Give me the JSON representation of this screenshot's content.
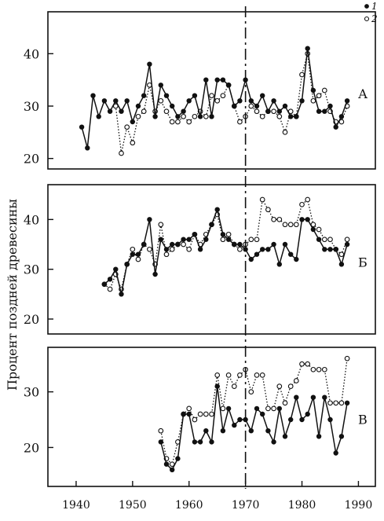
{
  "chart_data": {
    "type": "line",
    "ylabel": "Процент поздней древесины",
    "x_ticks": [
      1940,
      1950,
      1960,
      1970,
      1980,
      1990
    ],
    "xlim": [
      1935,
      1993
    ],
    "vertical_line_x": 1970,
    "legend": {
      "position": "top-right",
      "entries": [
        {
          "label": "1",
          "marker": "filled-circle"
        },
        {
          "label": "2",
          "marker": "open-circle"
        }
      ]
    },
    "panels": [
      {
        "label": "А",
        "ylim": [
          18,
          48
        ],
        "y_ticks": [
          20,
          30,
          40
        ],
        "series": [
          {
            "legend_label": "1",
            "x": [
              1941,
              1942,
              1943,
              1944,
              1945,
              1946,
              1947,
              1948,
              1949,
              1950,
              1951,
              1952,
              1953,
              1954,
              1955,
              1956,
              1957,
              1958,
              1959,
              1960,
              1961,
              1962,
              1963,
              1964,
              1965,
              1966,
              1967,
              1968,
              1969,
              1970,
              1971,
              1972,
              1973,
              1974,
              1975,
              1976,
              1977,
              1978,
              1979,
              1980,
              1981,
              1982,
              1983,
              1984,
              1985,
              1986,
              1987,
              1988
            ],
            "y": [
              26,
              22,
              32,
              28,
              31,
              29,
              31,
              29,
              31,
              27,
              30,
              32,
              38,
              28,
              34,
              32,
              30,
              28,
              29,
              31,
              32,
              28,
              35,
              28,
              35,
              35,
              34,
              30,
              31,
              35,
              31,
              30,
              32,
              29,
              31,
              29,
              30,
              28,
              28,
              31,
              41,
              33,
              29,
              29,
              30,
              26,
              28,
              31
            ]
          },
          {
            "legend_label": "2",
            "x": [
              1947,
              1948,
              1949,
              1950,
              1951,
              1952,
              1953,
              1954,
              1955,
              1956,
              1957,
              1958,
              1959,
              1960,
              1961,
              1962,
              1963,
              1964,
              1965,
              1966,
              1967,
              1968,
              1969,
              1970,
              1971,
              1972,
              1973,
              1974,
              1975,
              1976,
              1977,
              1978,
              1979,
              1980,
              1981,
              1982,
              1983,
              1984,
              1985,
              1986,
              1987,
              1988
            ],
            "y": [
              30,
              21,
              26,
              23,
              28,
              29,
              34,
              29,
              31,
              29,
              27,
              27,
              28,
              27,
              28,
              29,
              28,
              32,
              31,
              32,
              34,
              30,
              27,
              28,
              30,
              29,
              28,
              29,
              29,
              28,
              25,
              29,
              28,
              36,
              40,
              31,
              32,
              33,
              29,
              27,
              27,
              30
            ]
          }
        ]
      },
      {
        "label": "Б",
        "ylim": [
          17,
          47
        ],
        "y_ticks": [
          20,
          30,
          40
        ],
        "series": [
          {
            "legend_label": "1",
            "x": [
              1945,
              1946,
              1947,
              1948,
              1949,
              1950,
              1951,
              1952,
              1953,
              1954,
              1955,
              1956,
              1957,
              1958,
              1959,
              1960,
              1961,
              1962,
              1963,
              1964,
              1965,
              1966,
              1967,
              1968,
              1969,
              1970,
              1971,
              1972,
              1973,
              1974,
              1975,
              1976,
              1977,
              1978,
              1979,
              1980,
              1981,
              1982,
              1983,
              1984,
              1985,
              1986,
              1987,
              1988
            ],
            "y": [
              27,
              28,
              30,
              25,
              31,
              33,
              33,
              35,
              40,
              29,
              36,
              34,
              35,
              35,
              36,
              36,
              37,
              34,
              36,
              39,
              42,
              37,
              36,
              35,
              35,
              34,
              32,
              33,
              34,
              34,
              35,
              31,
              35,
              33,
              32,
              40,
              40,
              38,
              36,
              34,
              34,
              34,
              31,
              35
            ]
          },
          {
            "legend_label": "2",
            "x": [
              1945,
              1946,
              1947,
              1948,
              1949,
              1950,
              1951,
              1952,
              1953,
              1954,
              1955,
              1956,
              1957,
              1958,
              1959,
              1960,
              1961,
              1962,
              1963,
              1964,
              1965,
              1966,
              1967,
              1968,
              1969,
              1970,
              1971,
              1972,
              1973,
              1974,
              1975,
              1976,
              1977,
              1978,
              1979,
              1980,
              1981,
              1982,
              1983,
              1984,
              1985,
              1986,
              1987,
              1988
            ],
            "y": [
              27,
              26,
              29,
              26,
              31,
              34,
              32,
              35,
              34,
              31,
              39,
              33,
              34,
              35,
              35,
              34,
              37,
              35,
              37,
              39,
              41,
              36,
              37,
              35,
              34,
              35,
              36,
              36,
              44,
              42,
              40,
              40,
              39,
              39,
              39,
              43,
              44,
              39,
              38,
              36,
              36,
              34,
              33,
              36
            ]
          }
        ]
      },
      {
        "label": "В",
        "ylim": [
          13,
          38
        ],
        "y_ticks": [
          20,
          30
        ],
        "series": [
          {
            "legend_label": "1",
            "x": [
              1955,
              1956,
              1957,
              1958,
              1959,
              1960,
              1961,
              1962,
              1963,
              1964,
              1965,
              1966,
              1967,
              1968,
              1969,
              1970,
              1971,
              1972,
              1973,
              1974,
              1975,
              1976,
              1977,
              1978,
              1979,
              1980,
              1981,
              1982,
              1983,
              1984,
              1985,
              1986,
              1987,
              1988
            ],
            "y": [
              21,
              17,
              16,
              18,
              26,
              26,
              21,
              21,
              23,
              21,
              31,
              23,
              27,
              24,
              25,
              25,
              23,
              27,
              26,
              23,
              21,
              27,
              22,
              25,
              29,
              25,
              26,
              29,
              22,
              29,
              25,
              19,
              22,
              28
            ]
          },
          {
            "legend_label": "2",
            "x": [
              1955,
              1956,
              1957,
              1958,
              1959,
              1960,
              1961,
              1962,
              1963,
              1964,
              1965,
              1966,
              1967,
              1968,
              1969,
              1970,
              1971,
              1972,
              1973,
              1974,
              1975,
              1976,
              1977,
              1978,
              1979,
              1980,
              1981,
              1982,
              1983,
              1984,
              1985,
              1986,
              1987,
              1988
            ],
            "y": [
              23,
              18,
              17,
              21,
              26,
              27,
              25,
              26,
              26,
              26,
              33,
              27,
              33,
              31,
              33,
              34,
              30,
              33,
              33,
              27,
              27,
              31,
              28,
              31,
              32,
              35,
              35,
              34,
              34,
              34,
              28,
              28,
              28,
              36
            ]
          }
        ]
      }
    ]
  }
}
